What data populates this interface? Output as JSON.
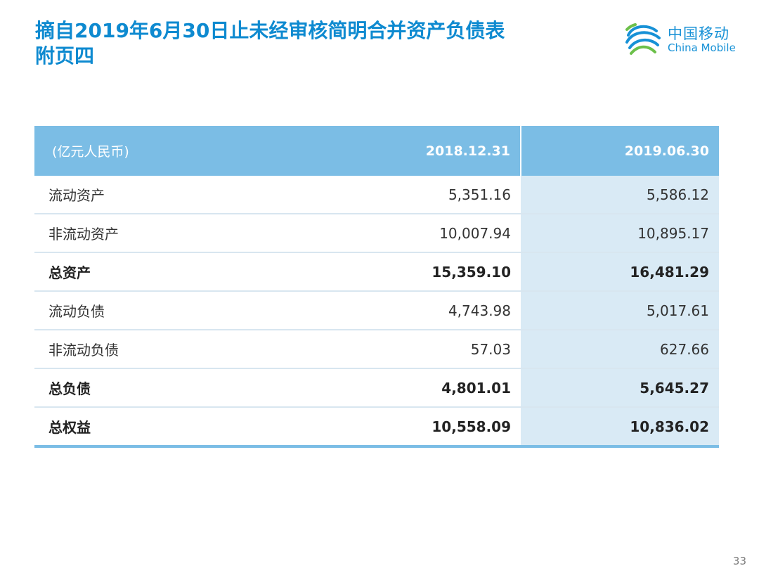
{
  "title": {
    "line1": "摘自2019年6月30日止未经审核简明合并资产负债表",
    "line2": "附页四"
  },
  "logo": {
    "cn": "中国移动",
    "en": "China Mobile"
  },
  "table": {
    "header": {
      "unit": "(亿元人民币)",
      "col1": "2018.12.31",
      "col2": "2019.06.30"
    },
    "rows": [
      {
        "label": "流动资产",
        "v1": "5,351.16",
        "v2": "5,586.12"
      },
      {
        "label": "非流动资产",
        "v1": "10,007.94",
        "v2": "10,895.17"
      },
      {
        "label": "总资产",
        "v1": "15,359.10",
        "v2": "16,481.29"
      },
      {
        "label": "流动负债",
        "v1": "4,743.98",
        "v2": "5,017.61"
      },
      {
        "label": "非流动负债",
        "v1": "57.03",
        "v2": "627.66"
      },
      {
        "label": "总负债",
        "v1": "4,801.01",
        "v2": "5,645.27"
      },
      {
        "label": "总权益",
        "v1": "10,558.09",
        "v2": "10,836.02"
      }
    ]
  },
  "page_number": "33"
}
